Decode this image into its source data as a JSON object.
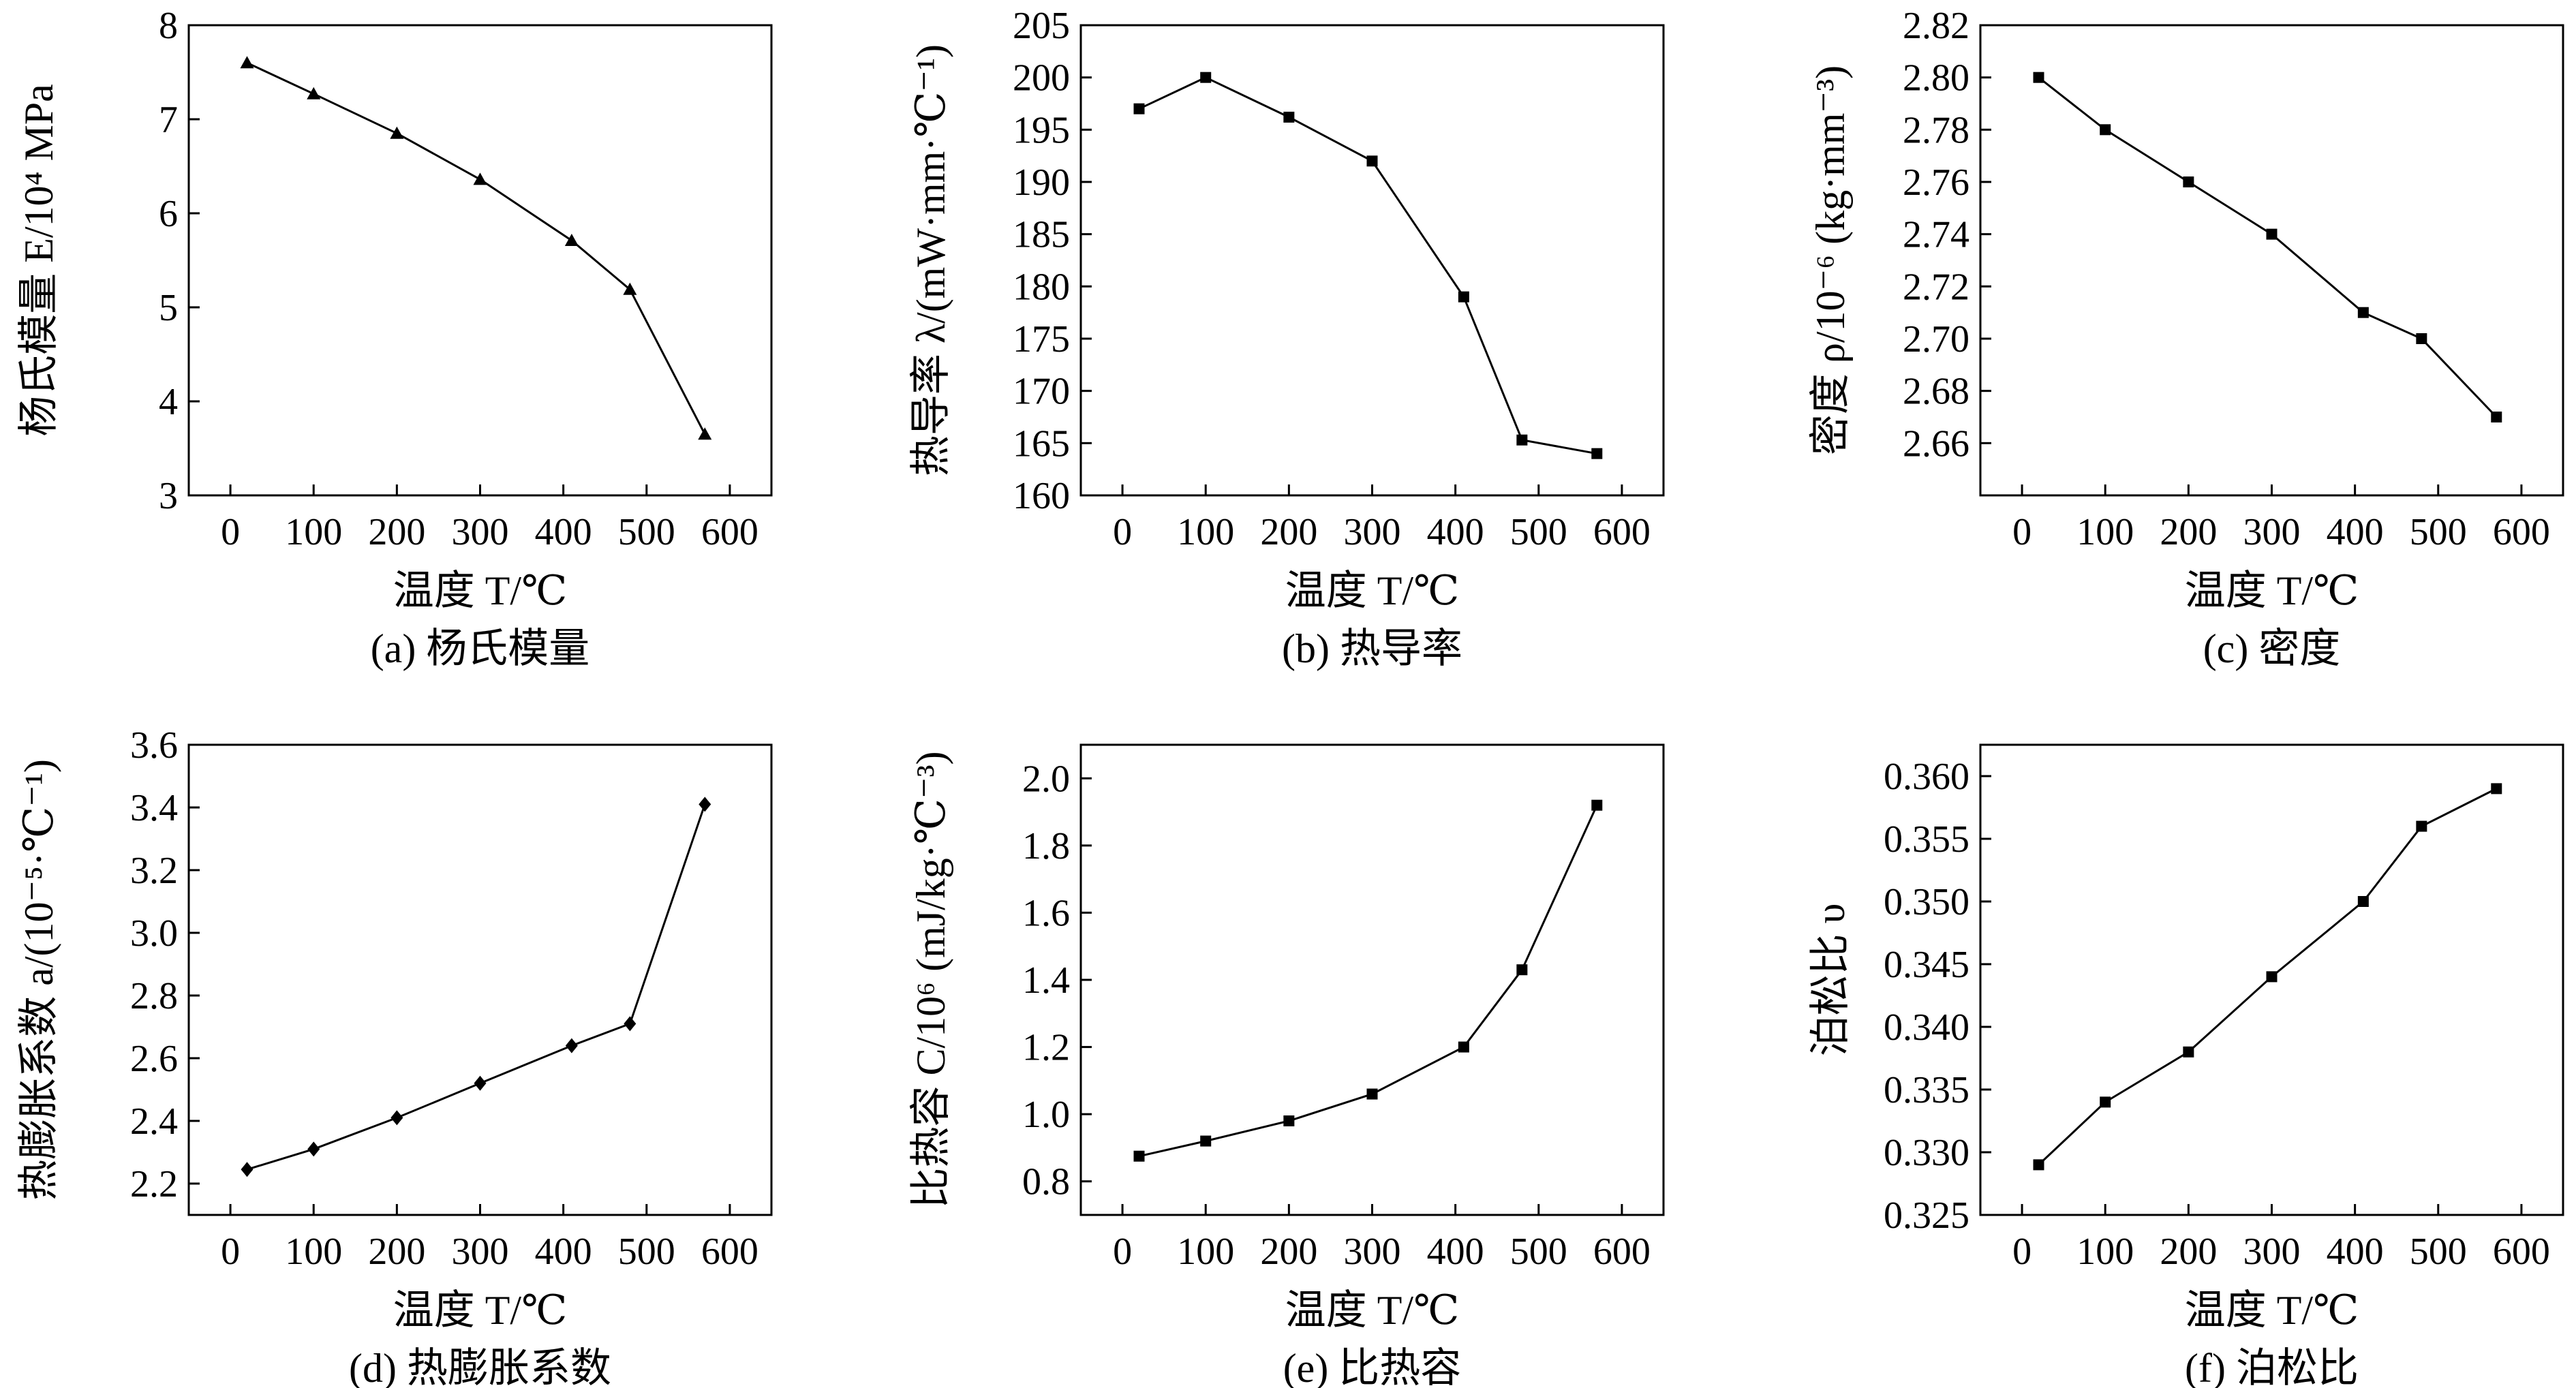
{
  "chart_data": [
    {
      "id": "a",
      "type": "line",
      "caption": "(a) 杨氏模量",
      "xlabel": "温度 T/℃",
      "ylabel": "杨氏模量 E/10⁴ MPa",
      "xlim": [
        -50,
        650
      ],
      "ylim": [
        3,
        8
      ],
      "xticks": [
        0,
        100,
        200,
        300,
        400,
        500,
        600
      ],
      "yticks": [
        3,
        4,
        5,
        6,
        7,
        8
      ],
      "marker": "triangle",
      "series": [
        {
          "x": [
            20,
            100,
            200,
            300,
            410,
            480,
            570
          ],
          "y": [
            7.6,
            7.27,
            6.85,
            6.36,
            5.71,
            5.19,
            3.65
          ]
        }
      ]
    },
    {
      "id": "b",
      "type": "line",
      "caption": "(b) 热导率",
      "xlabel": "温度 T/℃",
      "ylabel": "热导率 λ/(mW·mm·℃⁻¹)",
      "xlim": [
        -50,
        650
      ],
      "ylim": [
        160,
        205
      ],
      "xticks": [
        0,
        100,
        200,
        300,
        400,
        500,
        600
      ],
      "yticks": [
        160,
        165,
        170,
        175,
        180,
        185,
        190,
        195,
        200,
        205
      ],
      "marker": "square",
      "series": [
        {
          "x": [
            20,
            100,
            200,
            300,
            410,
            480,
            570
          ],
          "y": [
            197,
            200,
            196.2,
            192,
            179,
            165.3,
            164
          ]
        }
      ]
    },
    {
      "id": "c",
      "type": "line",
      "caption": "(c) 密度",
      "xlabel": "温度 T/℃",
      "ylabel": "密度 ρ/10⁻⁶ (kg·mm⁻³)",
      "xlim": [
        -50,
        650
      ],
      "ylim": [
        2.64,
        2.82
      ],
      "xticks": [
        0,
        100,
        200,
        300,
        400,
        500,
        600
      ],
      "yticks": [
        "2.66",
        "2.68",
        "2.70",
        "2.72",
        "2.74",
        "2.76",
        "2.78",
        "2.80",
        "2.82"
      ],
      "marker": "square",
      "series": [
        {
          "x": [
            20,
            100,
            200,
            300,
            410,
            480,
            570
          ],
          "y": [
            2.8,
            2.78,
            2.76,
            2.74,
            2.71,
            2.7,
            2.67
          ]
        }
      ]
    },
    {
      "id": "d",
      "type": "line",
      "caption": "(d) 热膨胀系数",
      "xlabel": "温度 T/℃",
      "ylabel": "热膨胀系数 a/(10⁻⁵·℃⁻¹)",
      "xlim": [
        -50,
        650
      ],
      "ylim": [
        2.1,
        3.6
      ],
      "xticks": [
        0,
        100,
        200,
        300,
        400,
        500,
        600
      ],
      "yticks": [
        "2.2",
        "2.4",
        "2.6",
        "2.8",
        "3.0",
        "3.2",
        "3.4",
        "3.6"
      ],
      "marker": "diamond",
      "series": [
        {
          "x": [
            20,
            100,
            200,
            300,
            410,
            480,
            570
          ],
          "y": [
            2.245,
            2.31,
            2.41,
            2.52,
            2.64,
            2.71,
            3.41
          ]
        }
      ]
    },
    {
      "id": "e",
      "type": "line",
      "caption": "(e) 比热容",
      "xlabel": "温度 T/℃",
      "ylabel": "比热容 C/10⁶ (mJ/kg·℃⁻³)",
      "xlim": [
        -50,
        650
      ],
      "ylim": [
        0.7,
        2.1
      ],
      "xticks": [
        0,
        100,
        200,
        300,
        400,
        500,
        600
      ],
      "yticks": [
        "0.8",
        "1.0",
        "1.2",
        "1.4",
        "1.6",
        "1.8",
        "2.0"
      ],
      "marker": "square",
      "series": [
        {
          "x": [
            20,
            100,
            200,
            300,
            410,
            480,
            570
          ],
          "y": [
            0.875,
            0.92,
            0.98,
            1.06,
            1.2,
            1.43,
            1.92
          ]
        }
      ]
    },
    {
      "id": "f",
      "type": "line",
      "caption": "(f) 泊松比",
      "xlabel": "温度 T/℃",
      "ylabel": "泊松比 υ",
      "xlim": [
        -50,
        650
      ],
      "ylim": [
        0.325,
        0.3625
      ],
      "xticks": [
        0,
        100,
        200,
        300,
        400,
        500,
        600
      ],
      "yticks": [
        "0.325",
        "0.330",
        "0.335",
        "0.340",
        "0.345",
        "0.350",
        "0.355",
        "0.360"
      ],
      "marker": "square",
      "series": [
        {
          "x": [
            20,
            100,
            200,
            300,
            410,
            480,
            570
          ],
          "y": [
            0.329,
            0.334,
            0.338,
            0.344,
            0.35,
            0.356,
            0.359
          ]
        }
      ]
    }
  ]
}
